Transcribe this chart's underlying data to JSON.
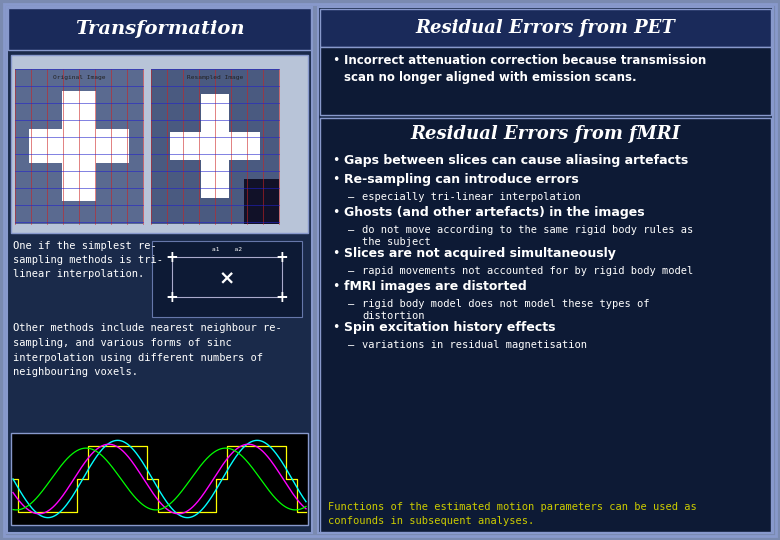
{
  "bg_color": "#1a2a4a",
  "outer_bg": "#7a8ab0",
  "title_left": "Transformation",
  "title_right_pet": "Residual Errors from PET",
  "title_right_fmri": "Residual Errors from fMRI",
  "pet_bullet": "Incorrect attenuation correction because transmission\nscan no longer aligned with emission scans.",
  "fmri_bullets": [
    {
      "level": 0,
      "bold": true,
      "text": "Gaps between slices can cause aliasing artefacts"
    },
    {
      "level": 0,
      "bold": true,
      "text": "Re-sampling can introduce errors"
    },
    {
      "level": 1,
      "bold": false,
      "text": "especially tri-linear interpolation"
    },
    {
      "level": 0,
      "bold": true,
      "text": "Ghosts (and other artefacts) in the images"
    },
    {
      "level": 1,
      "bold": false,
      "text": "do not move according to the same rigid body rules as\nthe subject"
    },
    {
      "level": 0,
      "bold": true,
      "text": "Slices are not acquired simultaneously"
    },
    {
      "level": 1,
      "bold": false,
      "text": "rapid movements not accounted for by rigid body model"
    },
    {
      "level": 0,
      "bold": true,
      "text": "fMRI images are distorted"
    },
    {
      "level": 1,
      "bold": false,
      "text": "rigid body model does not model these types of\ndistortion"
    },
    {
      "level": 0,
      "bold": true,
      "text": "Spin excitation history effects"
    },
    {
      "level": 1,
      "bold": false,
      "text": "variations in residual magnetisation"
    }
  ],
  "footer_text": "Functions of the estimated motion parameters can be used as\nconfounds in subsequent analyses.",
  "footer_color": "#cccc00",
  "text_color": "#ffffff",
  "panel_dark": "#0d1a35",
  "panel_header": "#1a2a5a",
  "border_color": "#8899cc"
}
